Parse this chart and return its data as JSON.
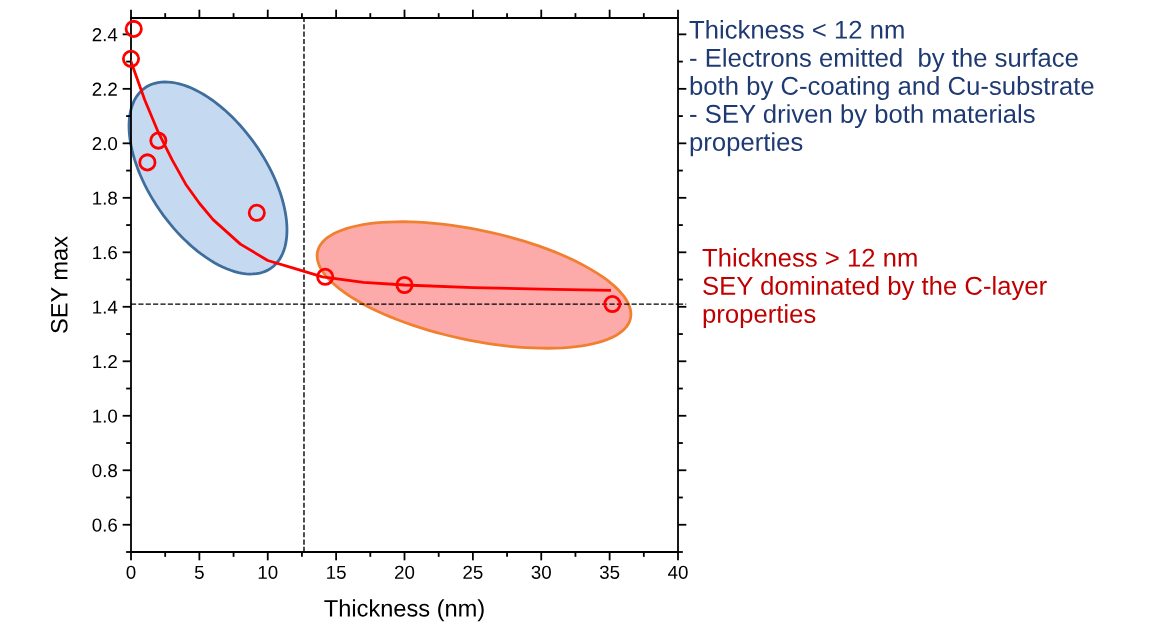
{
  "chart_data": {
    "type": "scatter",
    "xlabel": "Thickness (nm)",
    "ylabel": "SEY max",
    "xlim": [
      0,
      40
    ],
    "xticks": [
      0,
      5,
      10,
      15,
      20,
      25,
      30,
      35,
      40
    ],
    "ylim": [
      0.5,
      2.46
    ],
    "yticks": [
      0.6,
      0.8,
      {
        "value": 1.0,
        "label": "1.0"
      },
      1.2,
      1.4,
      1.6,
      1.8,
      {
        "value": 2.0,
        "label": "2.0"
      },
      2.2,
      2.4
    ],
    "grid": false,
    "series": [
      {
        "marker": "circle",
        "color": "#ff0000",
        "x": [
          0,
          0.2,
          1.2,
          2,
          9.2,
          14.2,
          20,
          35.2
        ],
        "values": [
          2.31,
          2.42,
          1.93,
          2.01,
          1.745,
          1.51,
          1.48,
          1.41
        ]
      },
      {
        "type": "line",
        "color": "#ff0000",
        "x": [
          0,
          1,
          2,
          3,
          4,
          5,
          6,
          8,
          10,
          12,
          14,
          17,
          20,
          25,
          30,
          35
        ],
        "values": [
          2.3,
          2.16,
          2.04,
          1.94,
          1.85,
          1.78,
          1.72,
          1.63,
          1.57,
          1.54,
          1.51,
          1.49,
          1.48,
          1.47,
          1.465,
          1.46
        ]
      }
    ],
    "ref_lines": [
      {
        "axis": "x",
        "value": 12.65,
        "color": "#000000",
        "line_style": "dashed"
      },
      {
        "axis": "y",
        "value": 1.41,
        "color": "#000000",
        "line_style": "dashed"
      }
    ],
    "annotations": [
      "Thickness < 12 nm\n- Electrons emitted  by the surface\nboth by C-coating and Cu-substrate\n- SEY driven by both materials\nproperties",
      "Thickness > 12 nm\nSEY dominated by the C-layer\nproperties"
    ]
  }
}
